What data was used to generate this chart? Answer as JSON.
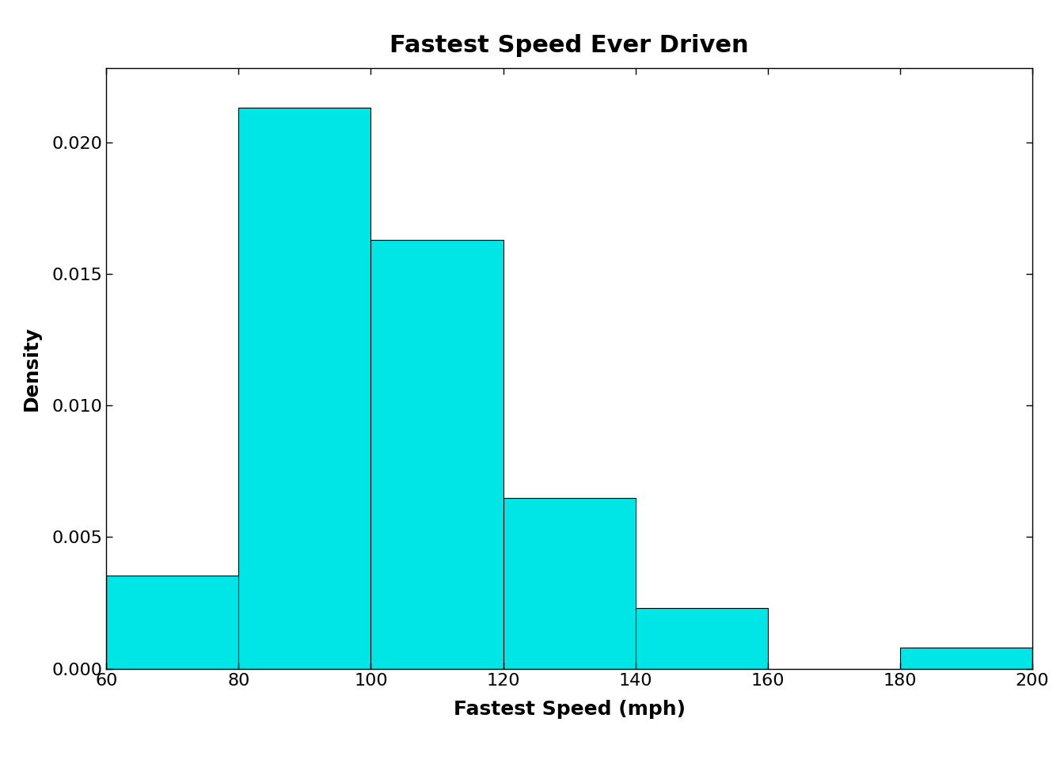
{
  "title": "Fastest Speed Ever Driven",
  "xlabel": "Fastest Speed (mph)",
  "ylabel": "Density",
  "bar_edges": [
    60,
    80,
    100,
    120,
    140,
    160,
    180,
    200
  ],
  "densities": [
    0.00355,
    0.0213,
    0.0163,
    0.0065,
    0.0023,
    0.0,
    0.0008
  ],
  "bar_color": "#00E5E5",
  "edge_color": "#000000",
  "xlim": [
    60,
    200
  ],
  "ylim": [
    0,
    0.0228
  ],
  "xticks": [
    60,
    80,
    100,
    120,
    140,
    160,
    180,
    200
  ],
  "yticks": [
    0.0,
    0.005,
    0.01,
    0.015,
    0.02
  ],
  "title_fontsize": 22,
  "label_fontsize": 18,
  "tick_fontsize": 16,
  "background_color": "#ffffff"
}
